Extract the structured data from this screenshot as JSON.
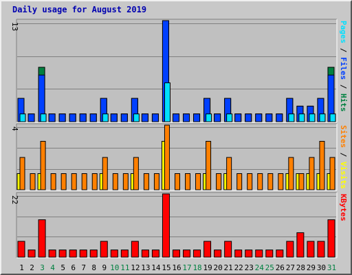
{
  "title": "Daily usage for August 2019",
  "chart_data": [
    {
      "type": "bar",
      "panel": "hits-files-pages",
      "categories": [
        "1",
        "2",
        "3",
        "4",
        "5",
        "6",
        "7",
        "8",
        "9",
        "10",
        "11",
        "12",
        "13",
        "14",
        "15",
        "16",
        "17",
        "18",
        "19",
        "20",
        "21",
        "22",
        "23",
        "24",
        "25",
        "26",
        "27",
        "28",
        "29",
        "30",
        "31"
      ],
      "ymax_label": "13",
      "ylim": [
        0,
        13
      ],
      "series": [
        {
          "name": "Hits",
          "color": "#008040",
          "values": [
            3,
            1,
            7,
            1,
            1,
            1,
            1,
            1,
            3,
            1,
            1,
            3,
            1,
            1,
            13,
            1,
            1,
            1,
            3,
            1,
            3,
            1,
            1,
            1,
            1,
            1,
            3,
            2,
            2,
            3,
            7
          ]
        },
        {
          "name": "Files",
          "color": "#0040ff",
          "values": [
            3,
            1,
            6,
            1,
            1,
            1,
            1,
            1,
            3,
            1,
            1,
            3,
            1,
            1,
            13,
            1,
            1,
            1,
            3,
            1,
            3,
            1,
            1,
            1,
            1,
            1,
            3,
            2,
            2,
            3,
            6
          ]
        },
        {
          "name": "Pages",
          "color": "#00e0ff",
          "values": [
            1,
            0,
            1,
            0,
            0,
            0,
            0,
            0,
            1,
            0,
            0,
            1,
            0,
            0,
            5,
            0,
            0,
            0,
            1,
            0,
            1,
            0,
            0,
            0,
            0,
            0,
            1,
            1,
            1,
            1,
            1
          ]
        }
      ],
      "legend_position": "right"
    },
    {
      "type": "bar",
      "panel": "visits-sites",
      "categories": [
        "1",
        "2",
        "3",
        "4",
        "5",
        "6",
        "7",
        "8",
        "9",
        "10",
        "11",
        "12",
        "13",
        "14",
        "15",
        "16",
        "17",
        "18",
        "19",
        "20",
        "21",
        "22",
        "23",
        "24",
        "25",
        "26",
        "27",
        "28",
        "29",
        "30",
        "31"
      ],
      "ymax_label": "4",
      "ylim": [
        0,
        4
      ],
      "series": [
        {
          "name": "Visits",
          "color": "#ffff00",
          "values": [
            1,
            0,
            1,
            0,
            0,
            0,
            0,
            0,
            1,
            0,
            0,
            1,
            0,
            0,
            3,
            0,
            0,
            0,
            1,
            0,
            1,
            0,
            0,
            0,
            0,
            0,
            1,
            1,
            1,
            1,
            1
          ]
        },
        {
          "name": "Sites",
          "color": "#ff8000",
          "values": [
            2,
            1,
            3,
            1,
            1,
            1,
            1,
            1,
            2,
            1,
            1,
            2,
            1,
            1,
            4,
            1,
            1,
            1,
            3,
            1,
            2,
            1,
            1,
            1,
            1,
            1,
            2,
            1,
            2,
            3,
            2
          ]
        }
      ],
      "legend_position": "right"
    },
    {
      "type": "bar",
      "panel": "kbytes",
      "categories": [
        "1",
        "2",
        "3",
        "4",
        "5",
        "6",
        "7",
        "8",
        "9",
        "10",
        "11",
        "12",
        "13",
        "14",
        "15",
        "16",
        "17",
        "18",
        "19",
        "20",
        "21",
        "22",
        "23",
        "24",
        "25",
        "26",
        "27",
        "28",
        "29",
        "30",
        "31"
      ],
      "ymax_label": "22",
      "ylim": [
        0,
        22
      ],
      "series": [
        {
          "name": "KBytes",
          "color": "#ff0000",
          "values": [
            5.5,
            2.5,
            13,
            2.5,
            2.5,
            2.5,
            2.5,
            2.5,
            5.5,
            2.5,
            2.5,
            5.5,
            2.5,
            2.5,
            22,
            2.5,
            2.5,
            2.5,
            5.5,
            2.5,
            5.5,
            2.5,
            2.5,
            2.5,
            2.5,
            2.5,
            5.5,
            8.5,
            5.5,
            5.5,
            13
          ]
        }
      ],
      "legend_position": "right"
    }
  ],
  "weekend_days": [
    3,
    4,
    10,
    11,
    17,
    18,
    24,
    25,
    31
  ],
  "colors": {
    "weekday_label": "#000000",
    "weekend_label": "#008040",
    "title": "#0000b0",
    "plot_bg": "#c0c0c0",
    "grid": "#808080"
  }
}
